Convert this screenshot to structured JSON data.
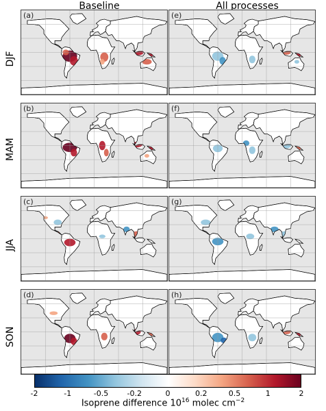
{
  "columns": [
    "Baseline",
    "All processes"
  ],
  "rows": [
    "DJF",
    "MAM",
    "JJA",
    "SON"
  ],
  "panels": [
    {
      "label": "(a)",
      "season": "DJF",
      "column": "Baseline"
    },
    {
      "label": "(e)",
      "season": "DJF",
      "column": "All processes"
    },
    {
      "label": "(b)",
      "season": "MAM",
      "column": "Baseline"
    },
    {
      "label": "(f)",
      "season": "MAM",
      "column": "All processes"
    },
    {
      "label": "(c)",
      "season": "JJA",
      "column": "Baseline"
    },
    {
      "label": "(g)",
      "season": "JJA",
      "column": "All processes"
    },
    {
      "label": "(d)",
      "season": "SON",
      "column": "Baseline"
    },
    {
      "label": "(h)",
      "season": "SON",
      "column": "All processes"
    }
  ],
  "colorbar": {
    "ticks": [
      "-2",
      "-1",
      "-0.5",
      "-0.2",
      "0",
      "0.2",
      "0.5",
      "1",
      "2"
    ],
    "title_prefix": "Isoprene difference 10",
    "title_exp": "16",
    "title_unit": " molec cm",
    "title_unit_exp": "−2",
    "colors": [
      "#08306b",
      "#2166ac",
      "#4393c3",
      "#92c5de",
      "#d1e5f0",
      "#ffffff",
      "#fddbc7",
      "#f4a582",
      "#d6604d",
      "#b2182b",
      "#67001f"
    ]
  }
}
